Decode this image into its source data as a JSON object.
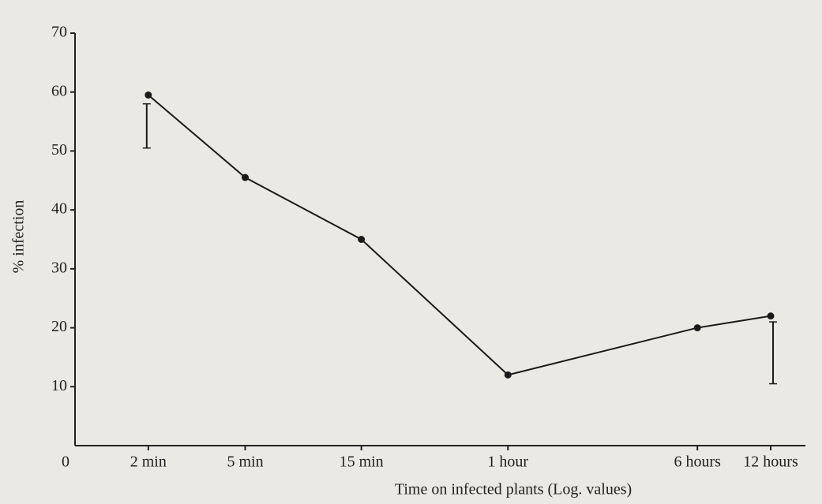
{
  "chart_data": {
    "type": "line",
    "xlabel": "Time on infected plants (Log. values)",
    "ylabel": "% infection",
    "x": [
      2,
      5,
      15,
      60,
      360,
      720
    ],
    "series": [
      {
        "values": [
          59.5,
          45.5,
          35,
          12,
          20,
          22
        ],
        "color": "#1a1a1a",
        "error_low": [
          50.5,
          null,
          null,
          null,
          null,
          10.5
        ],
        "error_high": [
          58,
          null,
          null,
          null,
          null,
          21
        ]
      }
    ],
    "xscale": "log",
    "xlim": [
      1,
      1000
    ],
    "xticks": [
      {
        "value": 1,
        "label": "0"
      },
      {
        "value": 2,
        "label": "2 min"
      },
      {
        "value": 5,
        "label": "5 min"
      },
      {
        "value": 15,
        "label": "15 min"
      },
      {
        "value": 60,
        "label": "1 hour"
      },
      {
        "value": 360,
        "label": "6 hours"
      },
      {
        "value": 720,
        "label": "12 hours"
      }
    ],
    "ylim": [
      0,
      70
    ],
    "yticks": [
      10,
      20,
      30,
      40,
      50,
      60,
      70
    ]
  }
}
